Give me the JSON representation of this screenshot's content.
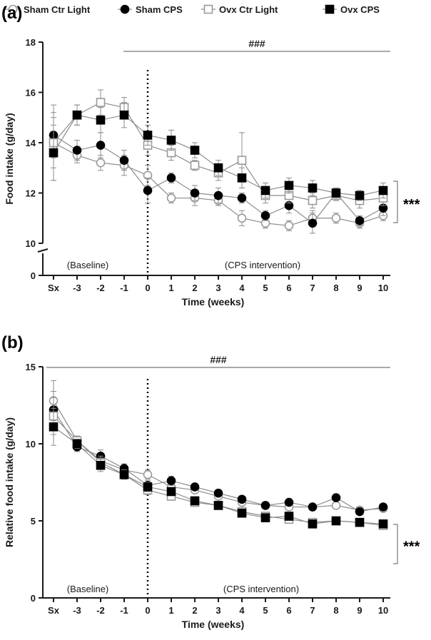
{
  "legend": {
    "items": [
      {
        "name": "Sham Ctr Light",
        "marker": "circle",
        "fill": "#ffffff",
        "stroke": "#9a9a9a"
      },
      {
        "name": "Sham CPS",
        "marker": "circle",
        "fill": "#000000",
        "stroke": "#000000"
      },
      {
        "name": "Ovx Ctr Light",
        "marker": "square",
        "fill": "#ffffff",
        "stroke": "#9a9a9a"
      },
      {
        "name": "Ovx CPS",
        "marker": "square",
        "fill": "#000000",
        "stroke": "#000000"
      }
    ]
  },
  "colors": {
    "line": "#8c8c8c",
    "axis": "#1a1a1a",
    "bracket_line": "#7a7a7a"
  },
  "chart_data": [
    {
      "panel": "(a)",
      "type": "line",
      "xlabel": "Time (weeks)",
      "ylabel": "Food intake (g/day)",
      "categories": [
        "Sx",
        "-3",
        "-2",
        "-1",
        "0",
        "1",
        "2",
        "3",
        "4",
        "5",
        "6",
        "7",
        "8",
        "9",
        "10"
      ],
      "ylim": [
        10,
        18
      ],
      "yticks": [
        10,
        12,
        14,
        16,
        18
      ],
      "axis_break": true,
      "zero_tick": "0",
      "baseline_label": "(Baseline)",
      "intervention_label": "(CPS intervention)",
      "overall_sig": "###",
      "group_sig": "***",
      "series": [
        {
          "name": "Sham Ctr Light",
          "values": [
            14.0,
            13.5,
            13.2,
            13.1,
            12.7,
            11.8,
            11.8,
            11.7,
            11.0,
            10.8,
            10.7,
            11.0,
            11.0,
            10.8,
            11.1
          ],
          "errors": [
            1.0,
            0.3,
            0.3,
            0.4,
            0.4,
            0.2,
            0.3,
            0.2,
            0.3,
            0.2,
            0.2,
            0.3,
            0.2,
            0.2,
            0.2
          ]
        },
        {
          "name": "Sham CPS",
          "values": [
            14.3,
            13.7,
            13.9,
            13.3,
            12.1,
            12.6,
            12.0,
            11.9,
            11.8,
            11.1,
            11.5,
            10.8,
            12.0,
            10.9,
            11.4
          ],
          "errors": [
            0.9,
            0.4,
            0.5,
            0.4,
            0.5,
            0.2,
            0.3,
            0.3,
            0.2,
            0.2,
            0.3,
            0.4,
            0.2,
            0.2,
            0.3
          ]
        },
        {
          "name": "Ovx Ctr Light",
          "values": [
            14.0,
            15.1,
            15.6,
            15.4,
            13.9,
            13.6,
            13.1,
            12.8,
            13.3,
            11.9,
            11.9,
            11.7,
            11.9,
            11.7,
            11.8
          ],
          "errors": [
            1.5,
            0.4,
            0.5,
            0.4,
            0.4,
            0.3,
            0.2,
            0.3,
            1.1,
            0.3,
            0.3,
            0.3,
            0.2,
            0.3,
            0.3
          ]
        },
        {
          "name": "Ovx CPS",
          "values": [
            13.6,
            15.1,
            14.9,
            15.1,
            14.3,
            14.1,
            13.7,
            13.0,
            12.6,
            12.1,
            12.3,
            12.2,
            12.0,
            11.9,
            12.1
          ],
          "errors": [
            1.1,
            0.4,
            0.5,
            0.5,
            0.4,
            0.4,
            0.3,
            0.3,
            0.4,
            0.3,
            0.3,
            0.3,
            0.2,
            0.2,
            0.3
          ]
        }
      ]
    },
    {
      "panel": "(b)",
      "type": "line",
      "xlabel": "Time (weeks)",
      "ylabel": "Relative food intake (g/day)",
      "categories": [
        "Sx",
        "-3",
        "-2",
        "-1",
        "0",
        "1",
        "2",
        "3",
        "4",
        "5",
        "6",
        "7",
        "8",
        "9",
        "10"
      ],
      "ylim": [
        0,
        15
      ],
      "yticks": [
        0,
        5,
        10,
        15
      ],
      "axis_break": false,
      "baseline_label": "(Baseline)",
      "intervention_label": "(CPS intervention)",
      "overall_sig": "###",
      "group_sig": "***",
      "series": [
        {
          "name": "Sham Ctr Light",
          "values": [
            12.8,
            10.2,
            8.9,
            8.3,
            8.0,
            7.2,
            7.0,
            6.6,
            6.2,
            6.0,
            5.9,
            5.9,
            6.0,
            5.7,
            5.8
          ],
          "errors": [
            1.3,
            0.3,
            0.4,
            0.3,
            0.3,
            0.3,
            0.2,
            0.2,
            0.2,
            0.2,
            0.2,
            0.2,
            0.2,
            0.2,
            0.2
          ]
        },
        {
          "name": "Sham CPS",
          "values": [
            12.2,
            9.8,
            9.2,
            8.4,
            7.3,
            7.6,
            7.2,
            6.8,
            6.4,
            6.0,
            6.2,
            5.9,
            6.5,
            5.6,
            5.9
          ],
          "errors": [
            1.2,
            0.3,
            0.4,
            0.3,
            0.3,
            0.3,
            0.2,
            0.2,
            0.2,
            0.2,
            0.2,
            0.2,
            0.2,
            0.2,
            0.2
          ]
        },
        {
          "name": "Ovx Ctr Light",
          "values": [
            11.8,
            10.2,
            8.8,
            8.0,
            7.0,
            6.6,
            6.2,
            6.0,
            5.6,
            5.3,
            5.1,
            4.9,
            5.0,
            4.9,
            4.7
          ],
          "errors": [
            1.2,
            0.3,
            0.4,
            0.3,
            0.3,
            0.2,
            0.2,
            0.2,
            0.2,
            0.2,
            0.2,
            0.2,
            0.2,
            0.2,
            0.2
          ]
        },
        {
          "name": "Ovx CPS",
          "values": [
            11.1,
            10.0,
            8.6,
            8.0,
            7.2,
            6.9,
            6.3,
            6.0,
            5.5,
            5.2,
            5.3,
            4.8,
            5.0,
            4.9,
            4.8
          ],
          "errors": [
            1.2,
            0.3,
            0.4,
            0.3,
            0.3,
            0.2,
            0.2,
            0.2,
            0.2,
            0.2,
            0.2,
            0.2,
            0.2,
            0.2,
            0.2
          ]
        }
      ]
    }
  ]
}
